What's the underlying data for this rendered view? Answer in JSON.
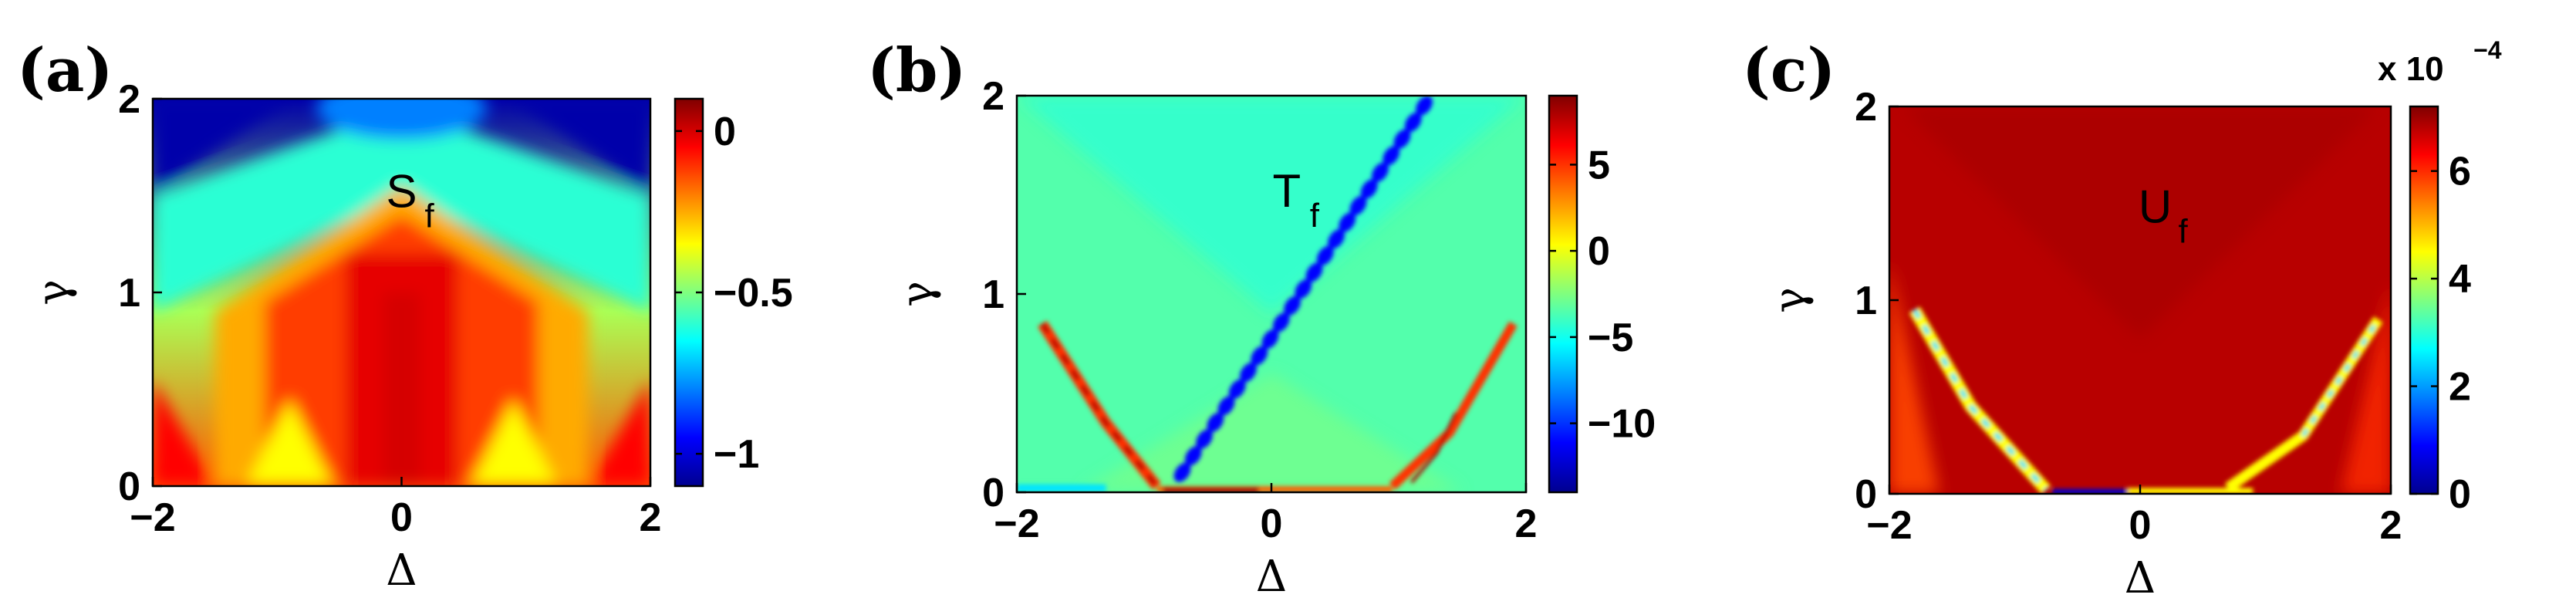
{
  "chart_data": [
    {
      "type": "heatmap",
      "panel_label": "(a)",
      "overlay_label": "S",
      "overlay_subscript": "f",
      "xlabel": "Δ",
      "ylabel": "γ",
      "xlim": [
        -2,
        2
      ],
      "ylim": [
        0,
        2
      ],
      "xticks": [
        "−2",
        "0",
        "2"
      ],
      "yticks": [
        "0",
        "1",
        "2"
      ],
      "colorbar": {
        "colormap": "jet",
        "range": [
          -1.1,
          0.1
        ],
        "ticks": [
          0,
          -0.5,
          -1
        ],
        "tick_labels": [
          "0",
          "−0.5",
          "−1"
        ]
      },
      "approx_values": {
        "center_ridge_low_gamma": 0.0,
        "center_at_gamma_2": -0.7,
        "corners_high_gamma": -1.05,
        "edges_low_gamma": -0.15
      }
    },
    {
      "type": "heatmap",
      "panel_label": "(b)",
      "overlay_label": "T",
      "overlay_subscript": "f",
      "xlabel": "Δ",
      "ylabel": "γ",
      "xlim": [
        -2,
        2
      ],
      "ylim": [
        0,
        2
      ],
      "xticks": [
        "−2",
        "0",
        "2"
      ],
      "yticks": [
        "0",
        "1",
        "2"
      ],
      "colorbar": {
        "colormap": "jet",
        "range": [
          -14,
          9
        ],
        "ticks": [
          5,
          0,
          -5,
          -10
        ],
        "tick_labels": [
          "5",
          "0",
          "−5",
          "−10"
        ]
      },
      "approx_values": {
        "background": -3.5,
        "diagonal_line": -11,
        "v_boundary": 8
      }
    },
    {
      "type": "heatmap",
      "panel_label": "(c)",
      "overlay_label": "U",
      "overlay_subscript": "f",
      "xlabel": "Δ",
      "ylabel": "γ",
      "xlim": [
        -2,
        2
      ],
      "ylim": [
        0,
        2
      ],
      "xticks": [
        "−2",
        "0",
        "2"
      ],
      "yticks": [
        "0",
        "1",
        "2"
      ],
      "colorbar": {
        "colormap": "jet",
        "range": [
          0,
          7.2
        ],
        "ticks": [
          6,
          4,
          2,
          0
        ],
        "tick_labels": [
          "6",
          "4",
          "2",
          "0"
        ],
        "exponent_prefix": "x 10",
        "exponent_power": "−4"
      },
      "approx_values": {
        "background": 6.8,
        "v_boundary": 2.5,
        "bottom_center": 0.5
      }
    }
  ]
}
